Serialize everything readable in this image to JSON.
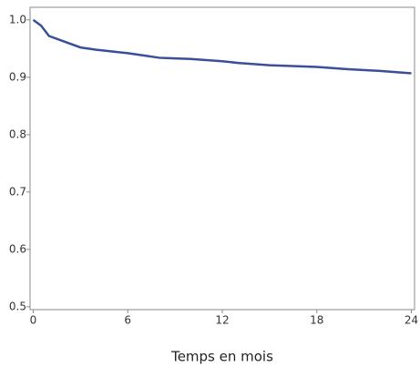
{
  "chart_data": {
    "type": "line",
    "x_label": "Temps en mois",
    "x": [
      0,
      0.5,
      1,
      2,
      3,
      4,
      5,
      6,
      7,
      8,
      9,
      10,
      12,
      13,
      14,
      15,
      16,
      18,
      20,
      22,
      24
    ],
    "series": [
      {
        "name": null,
        "color": "#3a4f9a",
        "values": [
          1.0,
          0.99,
          0.972,
          0.962,
          0.952,
          0.948,
          0.945,
          0.942,
          0.938,
          0.934,
          0.933,
          0.932,
          0.928,
          0.925,
          0.923,
          0.921,
          0.92,
          0.918,
          0.914,
          0.911,
          0.907
        ]
      }
    ],
    "xlim": [
      -0.2,
      24.2
    ],
    "xticks": [
      0,
      6,
      12,
      18,
      24
    ],
    "ylim": [
      0.495,
      1.022
    ],
    "yticks": [
      {
        "value": 0.5,
        "label": "0.5"
      },
      {
        "value": 0.6,
        "label": "0.6"
      },
      {
        "value": 0.7,
        "label": "0.7"
      },
      {
        "value": 0.8,
        "label": "0.8"
      },
      {
        "value": 0.9,
        "label": "0.9"
      },
      {
        "value": 1,
        "label": "1.0"
      }
    ]
  }
}
